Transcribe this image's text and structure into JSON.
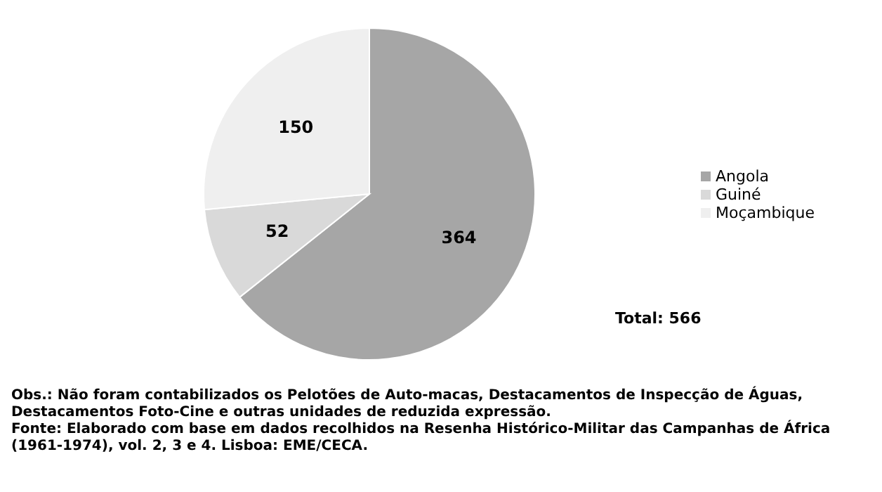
{
  "chart_data": {
    "type": "pie",
    "categories": [
      "Angola",
      "Guiné",
      "Moçambique"
    ],
    "values": [
      364,
      52,
      150
    ],
    "colors": [
      "#a6a6a6",
      "#d9d9d9",
      "#efefef"
    ],
    "data_labels": true,
    "legend": "right",
    "annotations": [
      "Total: 566",
      "Obs.: Não foram contabilizados os Pelotões de Auto-macas, Destacamentos de Inspecção de Águas, Destacamentos Foto-Cine e outras unidades de reduzida expressão.",
      "Fonte: Elaborado com base em dados recolhidos na Resenha Histórico-Militar das Campanhas de África (1961-1974), vol. 2,  3 e 4. Lisboa: EME/CECA."
    ]
  }
}
